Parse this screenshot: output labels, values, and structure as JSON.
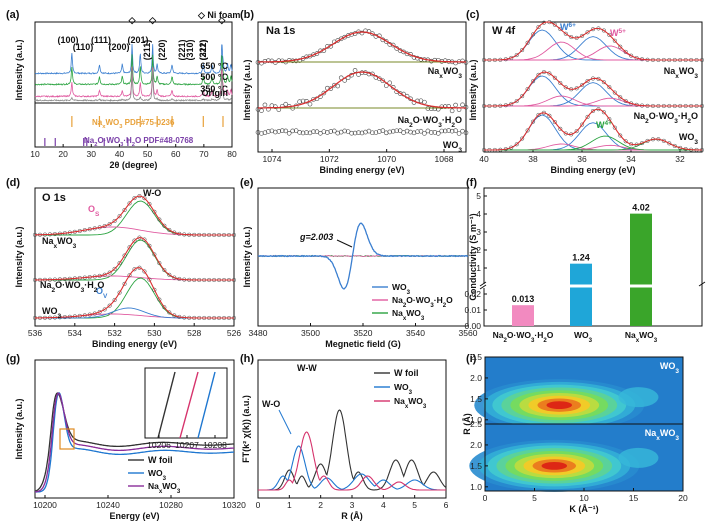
{
  "panels": [
    {
      "id": "a",
      "label": "(a)",
      "chart_data": {
        "type": "line",
        "title": "",
        "xlabel": "2θ (degree)",
        "ylabel": "Intensity (a.u.)",
        "xlim": [
          10,
          80
        ],
        "xticks": [
          "10",
          "20",
          "30",
          "40",
          "50",
          "60",
          "70",
          "80"
        ],
        "series": [
          {
            "name": "650 °C",
            "color": "#3b7fd0"
          },
          {
            "name": "500 °C",
            "color": "#2aa340"
          },
          {
            "name": "350 °C",
            "color": "#e05aa0"
          },
          {
            "name": "Origin",
            "color": "#8a8a8a"
          }
        ],
        "legend": "Ni foam",
        "peaks": [
          {
            "label": "(100)",
            "x": 23.1
          },
          {
            "label": "(110)",
            "x": 32.9
          },
          {
            "label": "(111)",
            "x": 41.0
          },
          {
            "label": "(200)",
            "x": 47.4
          },
          {
            "label": "(201)",
            "x": 53.4
          },
          {
            "label": "(211)",
            "x": 58.7
          },
          {
            "label": "(220)",
            "x": 69.8
          },
          {
            "label": "(221)",
            "x": 72.9
          },
          {
            "label": "(310)",
            "x": 76.8
          },
          {
            "label": "(311)",
            "x": 78.4
          },
          {
            "label": "(222)",
            "x": 79.6
          }
        ],
        "references": [
          {
            "name": "NaxWO3 PDF#75-0236",
            "label": "Na",
            "sub1": "x",
            "mid": "WO",
            "sub2": "3",
            "tail": " PDF#75-0236",
            "color": "#e8a13a",
            "lines": [
              23.1,
              32.9,
              47.4,
              53.4,
              58.7,
              69.8,
              76.8
            ]
          },
          {
            "name": "Na2O·WO3·H2O PDF#48-0768",
            "label": "Na",
            "sub1": "2",
            "mid": "O·WO",
            "sub2": "3",
            "tail": "·H",
            "sub3": "2",
            "tail2": "O PDF#48-0768",
            "color": "#7a3fa8",
            "lines": [
              13.5,
              17.2,
              27.3,
              28.4,
              34.6,
              43.0
            ]
          }
        ],
        "ni_foam_peaks": [
          44.5,
          51.8,
          76.4
        ]
      }
    },
    {
      "id": "b",
      "label": "(b)",
      "title": "Na 1s",
      "chart_data": {
        "type": "line",
        "xlabel": "Binding energy (eV)",
        "ylabel": "Intensity (a.u.)",
        "xlim": [
          1075,
          1067
        ],
        "xticks": [
          "1074",
          "1072",
          "1070",
          "1068"
        ],
        "series": [
          {
            "name": "NaxWO3",
            "center": 1071.0,
            "color": "#d93030"
          },
          {
            "name": "Na2O·WO3·H2O",
            "center": 1071.0,
            "color": "#d93030"
          },
          {
            "name": "WO3",
            "center": null,
            "color": "#777777"
          }
        ],
        "series_labels": [
          "Na",
          "Na",
          "WO"
        ]
      }
    },
    {
      "id": "c",
      "label": "(c)",
      "title": "W 4f",
      "chart_data": {
        "type": "line",
        "xlabel": "Binding energy (eV)",
        "ylabel": "Intensity (a.u.)",
        "xlim": [
          40,
          31
        ],
        "xticks": [
          "40",
          "38",
          "36",
          "34",
          "32"
        ],
        "series": [
          {
            "name": "NaxWO3"
          },
          {
            "name": "Na2O·WO3·H2O"
          },
          {
            "name": "WO3"
          }
        ],
        "components": [
          {
            "name": "W6+",
            "positions": [
              37.6,
              35.5
            ],
            "color": "#3b7fd0"
          },
          {
            "name": "W5+",
            "positions": [
              36.8,
              34.8
            ],
            "color": "#e05aa0"
          },
          {
            "name": "W4+",
            "positions": [
              35.0,
              32.9
            ],
            "color": "#2aa340"
          }
        ],
        "annotations": [
          "W",
          "6+",
          "W",
          "5+",
          "W",
          "4+"
        ]
      }
    },
    {
      "id": "d",
      "label": "(d)",
      "title": "O 1s",
      "chart_data": {
        "type": "line",
        "xlabel": "Binding energy (eV)",
        "ylabel": "Intensity (a.u.)",
        "xlim": [
          536,
          526
        ],
        "xticks": [
          "536",
          "534",
          "532",
          "530",
          "528",
          "526"
        ],
        "series": [
          {
            "name": "NaxWO3"
          },
          {
            "name": "Na2O·WO3·H2O"
          },
          {
            "name": "WO3"
          }
        ],
        "components": [
          {
            "name": "W-O",
            "position": 530.7,
            "color": "#2aa340"
          },
          {
            "name": "OS",
            "position": 532.1,
            "color": "#e05aa0"
          },
          {
            "name": "OV",
            "position": 531.3,
            "color": "#3b7fd0"
          }
        ],
        "annotations": [
          "W-O",
          "O",
          "S",
          "O",
          "V"
        ]
      }
    },
    {
      "id": "e",
      "label": "(e)",
      "chart_data": {
        "type": "line",
        "xlabel": "Megnetic field (G)",
        "ylabel": "Intensity (a.u.)",
        "xlim": [
          3480,
          3560
        ],
        "xticks": [
          "3480",
          "3500",
          "3520",
          "3540",
          "3560"
        ],
        "annotation": "g=2.003",
        "series": [
          {
            "name": "WO3",
            "color": "#3b7fd0"
          },
          {
            "name": "Na2O·WO3·H2O",
            "color": "#e05aa0"
          },
          {
            "name": "NaxWO3",
            "color": "#2aa340"
          }
        ]
      }
    },
    {
      "id": "f",
      "label": "(f)",
      "chart_data": {
        "type": "bar",
        "xlabel": "",
        "ylabel": "Conductivity (S m⁻¹)",
        "categories": [
          "Na2O·WO3·H2O",
          "WO3",
          "NaxWO3"
        ],
        "values": [
          0.013,
          1.24,
          4.02
        ],
        "value_labels": [
          "0.013",
          "1.24",
          "4.02"
        ],
        "colors": [
          "#f28ac0",
          "#1fa6d8",
          "#3aa52a"
        ],
        "yticks_upper": [
          "1",
          "2",
          "3",
          "4",
          "5"
        ],
        "yticks_lower": [
          "0.00",
          "0.01",
          "0.02"
        ],
        "axis_break": true
      }
    },
    {
      "id": "g",
      "label": "(g)",
      "chart_data": {
        "type": "line",
        "xlabel": "Energy (eV)",
        "ylabel": "Intensity (a.u.)",
        "xlim": [
          10200,
          10320
        ],
        "xticks": [
          "10200",
          "10240",
          "10280",
          "10320"
        ],
        "series": [
          {
            "name": "W foil",
            "color": "#333333"
          },
          {
            "name": "WO3",
            "color": "#1f77d0"
          },
          {
            "name": "NaxWO3",
            "color": "#8a2d9a"
          }
        ],
        "inset_xticks": [
          "10206",
          "10207",
          "10208"
        ]
      }
    },
    {
      "id": "h",
      "label": "(h)",
      "chart_data": {
        "type": "line",
        "xlabel": "R (Å)",
        "ylabel": "FT(k² χ(k)) (a.u.)",
        "xlim": [
          0,
          6
        ],
        "xticks": [
          "0",
          "1",
          "2",
          "3",
          "4",
          "5",
          "6"
        ],
        "annotations": [
          "W-W",
          "W-O"
        ],
        "series": [
          {
            "name": "W foil",
            "color": "#333333"
          },
          {
            "name": "WO3",
            "color": "#1f77d0"
          },
          {
            "name": "NaxWO3",
            "color": "#d6336c"
          }
        ]
      }
    },
    {
      "id": "i",
      "label": "(i)",
      "chart_data": {
        "type": "heatmap",
        "xlabel": "K (Å⁻¹)",
        "ylabel": "R (Å)",
        "xlim": [
          0,
          20
        ],
        "ylim": [
          0.9,
          2.5
        ],
        "xticks": [
          "0",
          "5",
          "10",
          "15",
          "20"
        ],
        "yticks": [
          "1.0",
          "1.5",
          "2.0",
          "2.5"
        ],
        "maps": [
          {
            "name": "WO3",
            "peak_k": 7.5,
            "peak_r": 1.35
          },
          {
            "name": "NaxWO3",
            "peak_k": 7.0,
            "peak_r": 1.5
          }
        ]
      }
    }
  ],
  "text": {
    "ni_foam": "◇ Ni foam",
    "t650": "650 °C",
    "t500": "500 °C",
    "t350": "350 °C",
    "origin": "Origin",
    "na1s": "Na 1s",
    "w4f": "W 4f",
    "o1s": "O 1s",
    "wo": "W-O",
    "ww": "W-W",
    "g": "g=2.003",
    "wfoil": "W foil"
  }
}
